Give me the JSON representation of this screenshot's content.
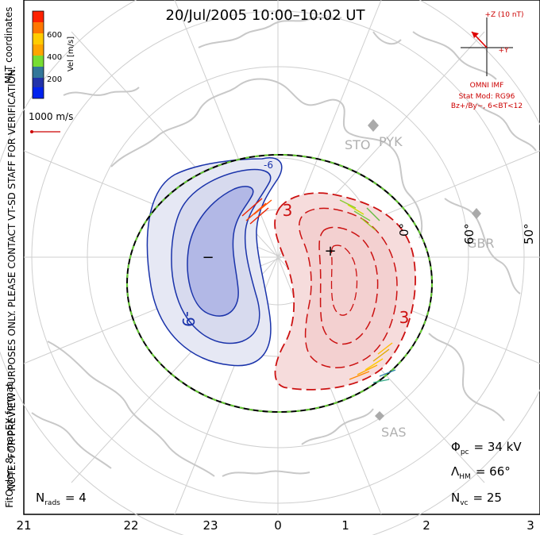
{
  "title": "20/Jul/2005 10:00–10:02 UT",
  "colorbar": {
    "label": "Vel [m/s]",
    "ticks": [
      "600",
      "400",
      "200"
    ],
    "colors": [
      "#ff2200",
      "#ff7700",
      "#ffcc00",
      "#77dd33",
      "#33aa55",
      "#337799",
      "#2233aa",
      "#0022ee"
    ]
  },
  "side_label_coords": "MLT coordinates",
  "notice": "NOTE: FOR PREVIEW PURPOSES ONLY. PLEASE CONTACT VT-SD STAFF FOR VERIFICATION.",
  "fitorder": "FitOrder: 8,  mapEX format",
  "ref_vector": "1000 m/s",
  "imf": {
    "bz_label": "+Z (10 nT)",
    "by_label": "+Y",
    "source": "OMNI IMF",
    "model": "Stat Mod: RG96",
    "condition": "Bz+/By−, 6<BT<12",
    "color": "#dd0000"
  },
  "stations": [
    "STO",
    "PYK",
    "GBR",
    "SAS"
  ],
  "lat_labels": [
    "60°",
    "50°",
    "0°"
  ],
  "contour_labels": [
    "3",
    "3",
    "-9",
    "-6"
  ],
  "potential_marks": {
    "min": "−",
    "max": "+"
  },
  "stats": {
    "phi_label": "Φ",
    "phi_sub": "pc",
    "phi_value": "= 34 kV",
    "lambda_label": "Λ",
    "lambda_sub": "HM",
    "lambda_value": "= 66°",
    "nvc_label": "N",
    "nvc_sub": "vc",
    "nvc_value": "= 25",
    "nrads_label": "N",
    "nrads_sub": "rads",
    "nrads_value": "= 4"
  },
  "mlt_ticks": [
    "21",
    "22",
    "23",
    "0",
    "1",
    "2",
    "3"
  ],
  "colors": {
    "negative_cell": "#1a33aa",
    "positive_cell": "#cc1111",
    "hm_boundary": "#000000",
    "boundary_dash": "#66cc33"
  }
}
